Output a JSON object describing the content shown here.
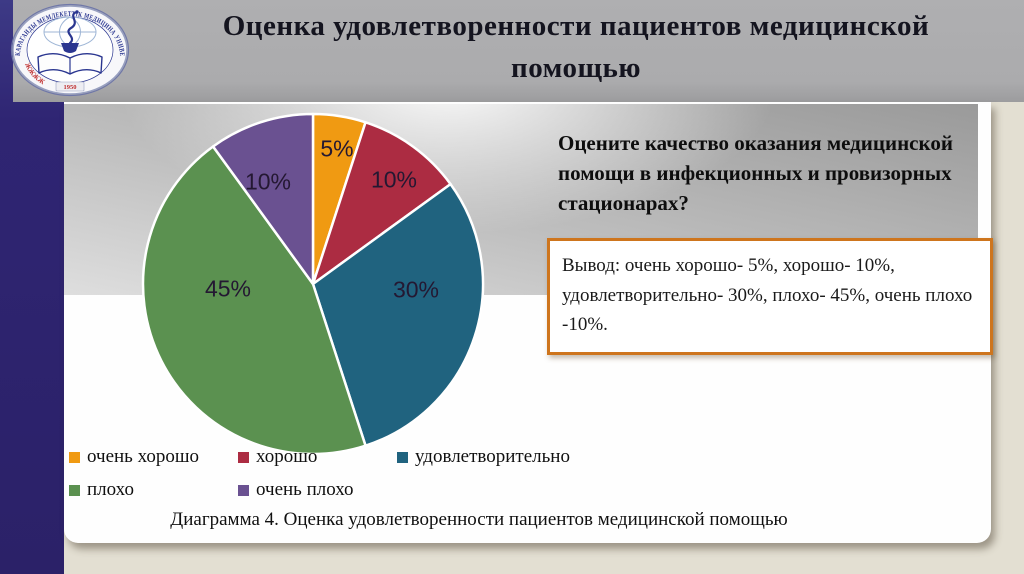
{
  "slide": {
    "title_lines": [
      "Оценка удовлетворенности пациентов медицинской",
      "помощью"
    ],
    "caption": "Диаграмма 4. Оценка удовлетворенности пациентов медицинской помощью"
  },
  "logo": {
    "institution": "КАРАГАНДЫ МЕМЛЕКЕТТІК МЕДИЦИНА УНИВЕРСИТЕТІ",
    "year": "1950"
  },
  "question": {
    "lines": [
      "Оцените качество оказания медицинской",
      "помощи в инфекционных и провизорных",
      "стационарах?"
    ]
  },
  "conclusion": {
    "lines": [
      "Вывод: очень хорошо- 5%, хорошо- 10%,",
      "удовлетворительно- 30%, плохо- 45%, очень плохо",
      "-10%."
    ],
    "border_color": "#CE751D"
  },
  "chart_data": {
    "type": "pie",
    "title": "Оценка удовлетворенности пациентов медицинской помощью",
    "categories": [
      "очень хорошо",
      "хорошо",
      "удовлетворительно",
      "плохо",
      "очень плохо"
    ],
    "values": [
      5,
      10,
      30,
      45,
      10
    ],
    "labels": [
      "5%",
      "10%",
      "30%",
      "45%",
      "10%"
    ],
    "colors": [
      "#F09A12",
      "#AC2C42",
      "#20637F",
      "#5B9150",
      "#6A5191"
    ],
    "start_angle_deg": 0,
    "direction": "clockwise",
    "legend_position": "bottom"
  },
  "theme": {
    "background": "#E3DFD2",
    "navy_bar": "#2F2573",
    "title_band": "#ABABAD",
    "panel": "#FFFFFF",
    "accent_border": "#CE751D"
  }
}
